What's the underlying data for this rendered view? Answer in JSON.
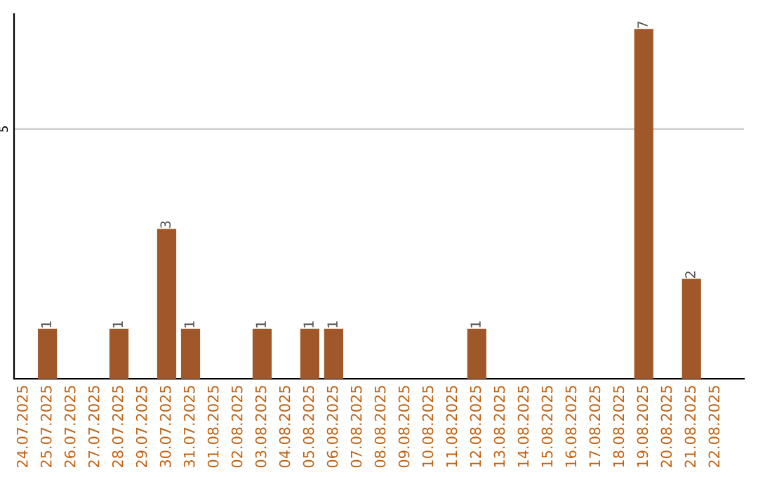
{
  "chart_data": {
    "type": "bar",
    "categories": [
      "24.07.2025",
      "25.07.2025",
      "26.07.2025",
      "27.07.2025",
      "28.07.2025",
      "29.07.2025",
      "30.07.2025",
      "31.07.2025",
      "01.08.2025",
      "02.08.2025",
      "03.08.2025",
      "04.08.2025",
      "05.08.2025",
      "06.08.2025",
      "07.08.2025",
      "08.08.2025",
      "09.08.2025",
      "10.08.2025",
      "11.08.2025",
      "12.08.2025",
      "13.08.2025",
      "14.08.2025",
      "15.08.2025",
      "16.08.2025",
      "17.08.2025",
      "18.08.2025",
      "19.08.2025",
      "20.08.2025",
      "21.08.2025",
      "22.08.2025"
    ],
    "values": [
      0,
      1,
      0,
      0,
      1,
      0,
      3,
      1,
      0,
      0,
      1,
      0,
      1,
      1,
      0,
      0,
      0,
      0,
      0,
      1,
      0,
      0,
      0,
      0,
      0,
      0,
      7,
      0,
      2,
      0
    ],
    "value_labels": [
      null,
      "1",
      null,
      null,
      "1",
      null,
      "3",
      "1",
      null,
      null,
      "1",
      null,
      "1",
      "1",
      null,
      null,
      null,
      null,
      null,
      "1",
      null,
      null,
      null,
      null,
      null,
      null,
      "7",
      null,
      "2",
      null
    ],
    "color": "#a0582a",
    "ylim": [
      0,
      7.3
    ],
    "yticks": [
      5
    ],
    "grid": "y",
    "legend": false
  }
}
